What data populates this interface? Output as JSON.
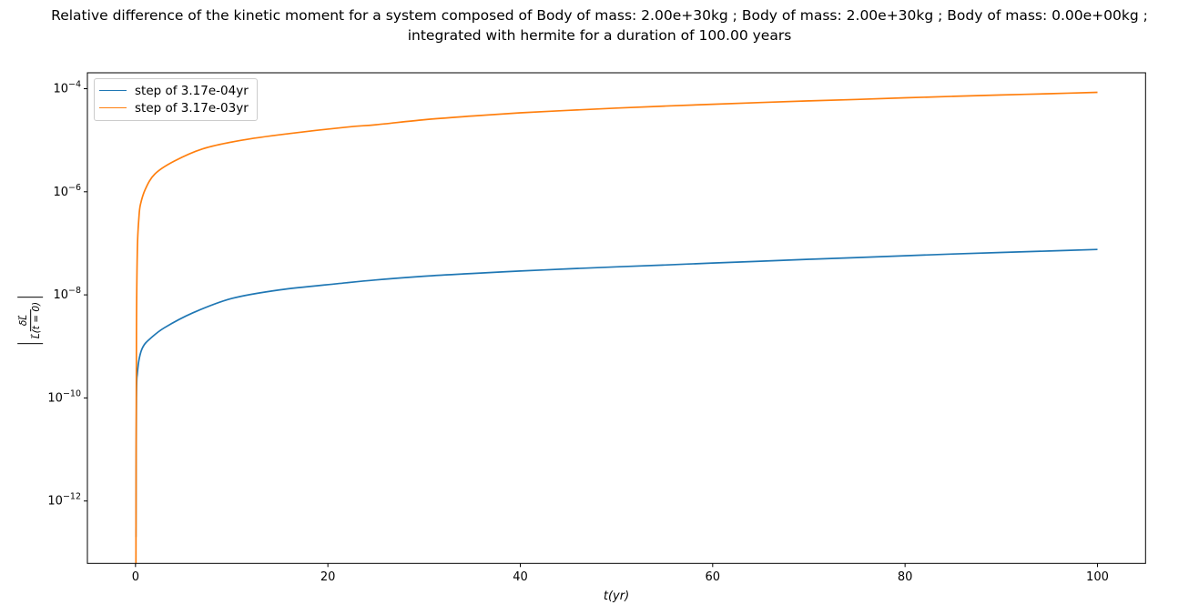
{
  "figure": {
    "title_lines": [
      "Relative difference of the kinetic moment for a system composed of Body of mass: 2.00e+30kg ; Body of mass: 2.00e+30kg ; Body of mass: 0.00e+00kg ;",
      "integrated with hermite for a duration of 100.00 years"
    ]
  },
  "chart_data": {
    "type": "line",
    "title": "Relative difference of the kinetic moment for a system composed of Body of mass: 2.00e+30kg ; Body of mass: 2.00e+30kg ; Body of mass: 0.00e+00kg ; integrated with hermite for a duration of 100.00 years",
    "xlabel": "t(yr)",
    "ylabel": "|δL⃗ / L⃗(t = 0)|",
    "ylabel_numerator": "δL⃗",
    "ylabel_denominator": "L⃗(t = 0)",
    "yscale": "log",
    "grid": false,
    "legend_position": "upper left",
    "xlim": [
      -5,
      105
    ],
    "ylim_log10": [
      -13.211,
      -3.691
    ],
    "x_ticks": [
      0,
      20,
      40,
      60,
      80,
      100
    ],
    "y_tick_exponents": [
      -4,
      -6,
      -8,
      -10,
      -12
    ],
    "series": [
      {
        "name": "step of 3.17e-04yr",
        "color": "#1f77b4",
        "x": [
          0.04,
          0.1,
          0.2,
          0.4,
          0.8,
          1.5,
          3,
          6,
          10,
          15,
          21,
          25,
          30,
          35,
          40,
          45,
          50,
          55,
          60,
          65,
          70,
          75,
          80,
          85,
          90,
          95,
          100
        ],
        "y": [
          2e-13,
          1e-10,
          3e-10,
          6e-10,
          1e-09,
          1.4e-09,
          2.3e-09,
          4.5e-09,
          8.5e-09,
          1.25e-08,
          1.65e-08,
          1.95e-08,
          2.3e-08,
          2.6e-08,
          2.9e-08,
          3.2e-08,
          3.5e-08,
          3.8e-08,
          4.15e-08,
          4.5e-08,
          4.9e-08,
          5.3e-08,
          5.75e-08,
          6.2e-08,
          6.65e-08,
          7.1e-08,
          7.6e-08
        ]
      },
      {
        "name": "step of 3.17e-03yr",
        "color": "#ff7f0e",
        "x": [
          0.04,
          0.1,
          0.2,
          0.35,
          0.5,
          1,
          2,
          4,
          7,
          11,
          16,
          22,
          25,
          30,
          35,
          40,
          45,
          50,
          55,
          60,
          65,
          70,
          75,
          80,
          85,
          90,
          95,
          100
        ],
        "y": [
          5e-14,
          2e-09,
          8e-08,
          3e-07,
          5.5e-07,
          1.1e-06,
          2.2e-06,
          3.9e-06,
          6.8e-06,
          1e-05,
          1.35e-05,
          1.8e-05,
          2e-05,
          2.5e-05,
          2.95e-05,
          3.4e-05,
          3.8e-05,
          4.2e-05,
          4.6e-05,
          5e-05,
          5.4e-05,
          5.8e-05,
          6.2e-05,
          6.65e-05,
          7.1e-05,
          7.55e-05,
          8e-05,
          8.5e-05
        ]
      }
    ]
  },
  "colors": {
    "background": "#ffffff",
    "spine": "#000000",
    "text": "#000000",
    "legend_border": "#cccccc",
    "series_blue": "#1f77b4",
    "series_orange": "#ff7f0e"
  }
}
